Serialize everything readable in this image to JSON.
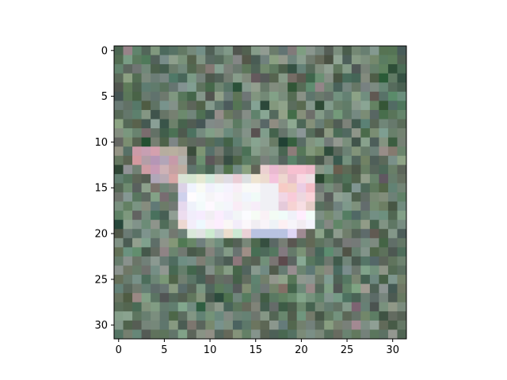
{
  "figure": {
    "background": "#ffffff"
  },
  "image": {
    "grid_size": [
      32,
      32
    ],
    "description_colors": {
      "grass_dark": "#4f5f52",
      "grass_mid": "#6f7f70",
      "grass_light": "#8d9a8c",
      "animal_white": "#f4f4f7",
      "animal_pink": "#e6c7cf"
    }
  },
  "axes": {
    "xlim": [
      -0.5,
      31.5
    ],
    "ylim": [
      31.5,
      -0.5
    ],
    "x_ticks": [
      0,
      5,
      10,
      15,
      20,
      25,
      30
    ],
    "x_tick_labels": [
      "0",
      "5",
      "10",
      "15",
      "20",
      "25",
      "30"
    ],
    "y_ticks": [
      0,
      5,
      10,
      15,
      20,
      25,
      30
    ],
    "y_tick_labels": [
      "0",
      "5",
      "10",
      "15",
      "20",
      "25",
      "30"
    ]
  }
}
